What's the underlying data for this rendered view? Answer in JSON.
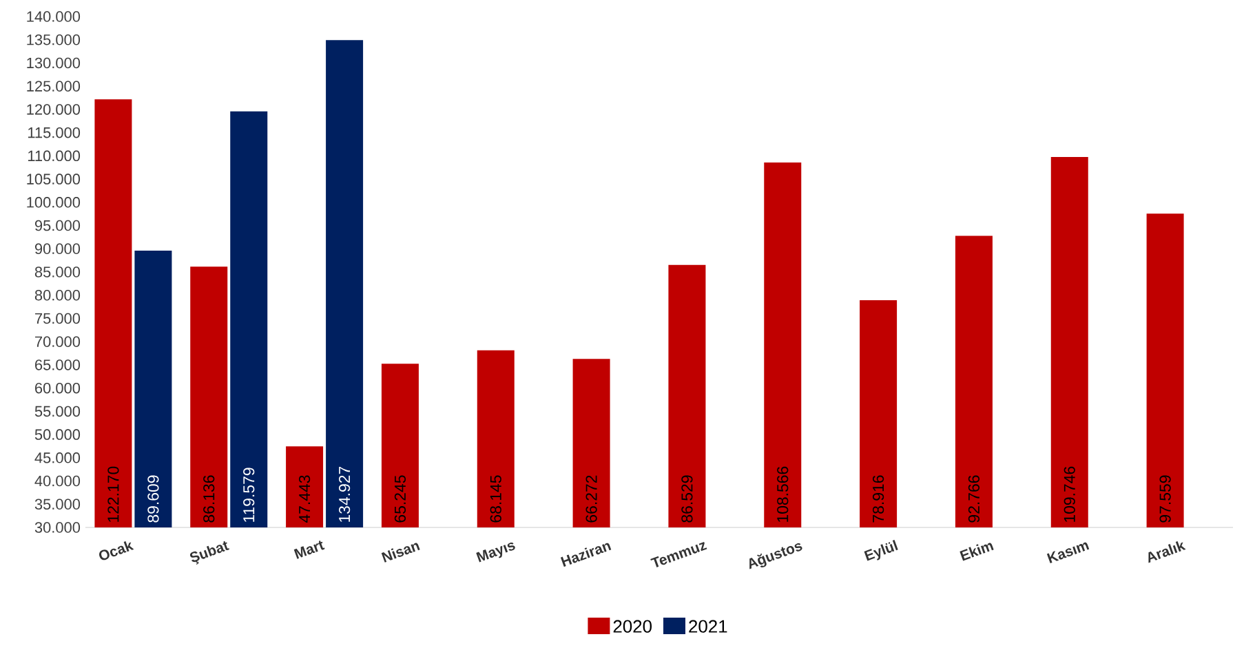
{
  "chart_data": {
    "type": "bar",
    "categories": [
      "Ocak",
      "Şubat",
      "Mart",
      "Nisan",
      "Mayıs",
      "Haziran",
      "Temmuz",
      "Ağustos",
      "Eylül",
      "Ekim",
      "Kasım",
      "Aralık"
    ],
    "series": [
      {
        "name": "2020",
        "color": "#c00000",
        "values": [
          122170,
          86136,
          47443,
          65245,
          68145,
          66272,
          86529,
          108566,
          78916,
          92766,
          109746,
          97559
        ],
        "value_labels": [
          "122.170",
          "86.136",
          "47.443",
          "65.245",
          "68.145",
          "66.272",
          "86.529",
          "108.566",
          "78.916",
          "92.766",
          "109.746",
          "97.559"
        ]
      },
      {
        "name": "2021",
        "color": "#002060",
        "values": [
          89609,
          119579,
          134927,
          null,
          null,
          null,
          null,
          null,
          null,
          null,
          null,
          null
        ],
        "value_labels": [
          "89.609",
          "119.579",
          "134.927",
          null,
          null,
          null,
          null,
          null,
          null,
          null,
          null,
          null
        ]
      }
    ],
    "ylim": [
      30000,
      140000
    ],
    "yticks": [
      {
        "value": 30000,
        "label": "30.000"
      },
      {
        "value": 35000,
        "label": "35.000"
      },
      {
        "value": 40000,
        "label": "40.000"
      },
      {
        "value": 45000,
        "label": "45.000"
      },
      {
        "value": 50000,
        "label": "50.000"
      },
      {
        "value": 55000,
        "label": "55.000"
      },
      {
        "value": 60000,
        "label": "60.000"
      },
      {
        "value": 65000,
        "label": "65.000"
      },
      {
        "value": 70000,
        "label": "70.000"
      },
      {
        "value": 75000,
        "label": "75.000"
      },
      {
        "value": 80000,
        "label": "80.000"
      },
      {
        "value": 85000,
        "label": "85.000"
      },
      {
        "value": 90000,
        "label": "90.000"
      },
      {
        "value": 95000,
        "label": "95.000"
      },
      {
        "value": 100000,
        "label": "100.000"
      },
      {
        "value": 105000,
        "label": "105.000"
      },
      {
        "value": 110000,
        "label": "110.000"
      },
      {
        "value": 115000,
        "label": "115.000"
      },
      {
        "value": 120000,
        "label": "120.000"
      },
      {
        "value": 125000,
        "label": "125.000"
      },
      {
        "value": 130000,
        "label": "130.000"
      },
      {
        "value": 135000,
        "label": "135.000"
      },
      {
        "value": 140000,
        "label": "140.000"
      }
    ],
    "legend": "bottom"
  }
}
